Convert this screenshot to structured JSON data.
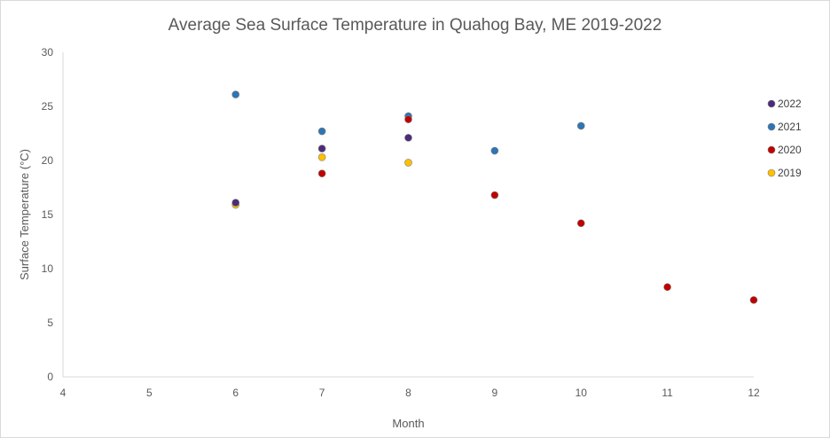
{
  "chart_data": {
    "type": "scatter",
    "title": "Average Sea Surface Temperature in Quahog Bay, ME    2019-2022",
    "xlabel": "Month",
    "ylabel": "Surface Temperature (°C)",
    "xlim": [
      4,
      12
    ],
    "ylim": [
      0,
      30
    ],
    "xticks": [
      "4",
      "5",
      "6",
      "7",
      "8",
      "9",
      "10",
      "11",
      "12"
    ],
    "yticks": [
      "0",
      "5",
      "10",
      "15",
      "20",
      "25",
      "30"
    ],
    "grid": false,
    "legend_position": "right",
    "series": [
      {
        "name": "2019",
        "color": "#FFC000",
        "points": [
          {
            "x": 6,
            "y": 15.9
          },
          {
            "x": 7,
            "y": 20.3
          },
          {
            "x": 8,
            "y": 19.8
          }
        ]
      },
      {
        "name": "2020",
        "color": "#C00000",
        "points": [
          {
            "x": 7,
            "y": 18.8
          },
          {
            "x": 8,
            "y": 23.8
          },
          {
            "x": 9,
            "y": 16.8
          },
          {
            "x": 10,
            "y": 14.2
          },
          {
            "x": 11,
            "y": 8.3
          },
          {
            "x": 12,
            "y": 7.1
          }
        ]
      },
      {
        "name": "2021",
        "color": "#2E75B6",
        "points": [
          {
            "x": 6,
            "y": 26.1
          },
          {
            "x": 7,
            "y": 22.7
          },
          {
            "x": 8,
            "y": 24.1
          },
          {
            "x": 9,
            "y": 20.9
          },
          {
            "x": 10,
            "y": 23.2
          }
        ]
      },
      {
        "name": "2022",
        "color": "#4B2C7A",
        "points": [
          {
            "x": 6,
            "y": 16.1
          },
          {
            "x": 7,
            "y": 21.1
          },
          {
            "x": 8,
            "y": 22.1
          }
        ]
      }
    ],
    "legend_order": [
      "2022",
      "2021",
      "2020",
      "2019"
    ]
  }
}
